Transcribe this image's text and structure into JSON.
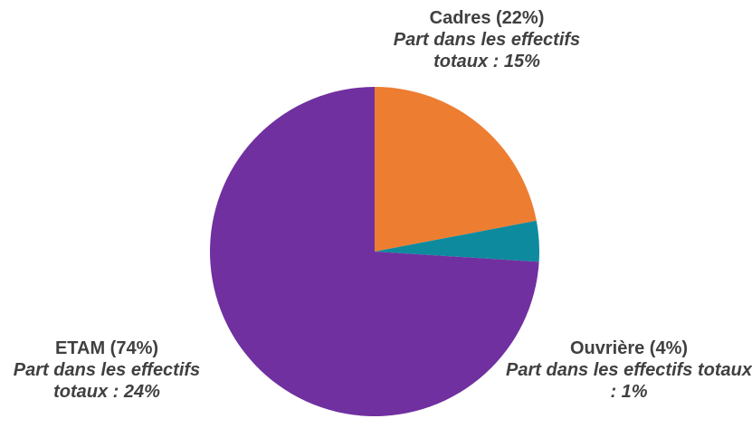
{
  "chart_data": {
    "type": "pie",
    "categories": [
      "Cadres (22%)",
      "Ouvrière (4%)",
      "ETAM (74%)"
    ],
    "values": [
      22,
      4,
      74
    ],
    "colors": [
      "#ED7D31",
      "#0E8A9E",
      "#7030A0"
    ],
    "annotations": [
      "Part dans les effectifs totaux : 15%",
      "Part dans les effectifs totaux : 1%",
      "Part dans les effectifs totaux : 24%"
    ]
  }
}
